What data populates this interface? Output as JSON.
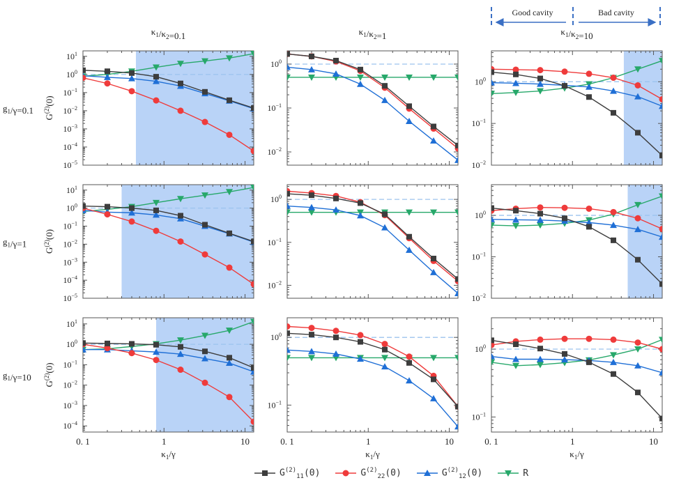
{
  "colors": {
    "G11": "#3d3d3d",
    "G22": "#ef3b3b",
    "G12": "#1f6fd6",
    "R": "#27a86a",
    "shade": "#b9d3f7",
    "ref_line": "#9cc3ee",
    "annot": "#3a6fc4"
  },
  "annotation": {
    "good": "Good cavity",
    "bad": "Bad cavity"
  },
  "legend": [
    {
      "key": "G11",
      "base": "G",
      "sup": "(2)",
      "sub": "11",
      "tail": "(0)",
      "marker": "square"
    },
    {
      "key": "G22",
      "base": "G",
      "sup": "(2)",
      "sub": "22",
      "tail": "(0)",
      "marker": "circle"
    },
    {
      "key": "G12",
      "base": "G",
      "sup": "(2)",
      "sub": "12",
      "tail": "(0)",
      "marker": "triangle-up"
    },
    {
      "key": "R",
      "base": "R",
      "sup": "",
      "sub": "",
      "tail": "",
      "marker": "triangle-down"
    }
  ],
  "col_titles": [
    "κ1/κ2=0.1",
    "κ1/κ2=1",
    "κ1/κ2=10"
  ],
  "row_labels": [
    "g1/γ=0.1",
    "g1/γ=1",
    "g1/γ=10"
  ],
  "ylabel": "G(2)(0)",
  "xlabel": "κ1/γ",
  "x_tick_labels": [
    "0. 1",
    "1",
    "10"
  ],
  "chart_data": {
    "type": "line",
    "xscale": "log",
    "yscale": "log",
    "x": [
      0.1,
      0.2,
      0.4,
      0.8,
      1.6,
      3.2,
      6.4,
      12.8
    ],
    "xlim": [
      0.1,
      12.8
    ],
    "reference_line_y": 1,
    "panels": [
      {
        "row": 0,
        "col": 0,
        "ylim": [
          1e-05,
          20
        ],
        "yticks": [
          -5,
          -4,
          -3,
          -2,
          -1,
          0,
          1
        ],
        "shade_from": 0.45,
        "series": {
          "G11": [
            1.7,
            1.5,
            1.2,
            0.75,
            0.32,
            0.11,
            0.038,
            0.014
          ],
          "G22": [
            0.65,
            0.32,
            0.12,
            0.037,
            0.01,
            0.0024,
            0.00047,
            6e-05
          ],
          "G12": [
            0.85,
            0.7,
            0.6,
            0.42,
            0.23,
            0.09,
            0.035,
            0.013
          ],
          "R": [
            0.8,
            1.0,
            1.5,
            2.5,
            4.0,
            5.5,
            8.0,
            14.0
          ]
        }
      },
      {
        "row": 0,
        "col": 1,
        "ylim": [
          0.005,
          2.0
        ],
        "yticks": [
          -2,
          -1,
          0
        ],
        "shade_from": null,
        "series": {
          "G11": [
            1.7,
            1.5,
            1.2,
            0.75,
            0.32,
            0.11,
            0.038,
            0.014
          ],
          "G22": [
            1.7,
            1.5,
            1.15,
            0.7,
            0.29,
            0.097,
            0.034,
            0.012
          ],
          "G12": [
            0.85,
            0.75,
            0.6,
            0.35,
            0.15,
            0.05,
            0.018,
            0.0065
          ],
          "R": [
            0.5,
            0.5,
            0.5,
            0.5,
            0.5,
            0.5,
            0.5,
            0.5
          ]
        }
      },
      {
        "row": 0,
        "col": 2,
        "ylim": [
          0.01,
          5.5
        ],
        "yticks": [
          -2,
          -1,
          0
        ],
        "shade_from": 4.3,
        "series": {
          "G11": [
            1.7,
            1.5,
            1.2,
            0.8,
            0.43,
            0.18,
            0.06,
            0.017
          ],
          "G22": [
            2.0,
            1.95,
            1.9,
            1.75,
            1.55,
            1.25,
            0.82,
            0.38
          ],
          "G12": [
            0.95,
            0.92,
            0.88,
            0.82,
            0.75,
            0.6,
            0.44,
            0.26
          ],
          "R": [
            0.52,
            0.55,
            0.6,
            0.7,
            0.88,
            1.25,
            2.0,
            3.2
          ]
        }
      },
      {
        "row": 1,
        "col": 0,
        "ylim": [
          1e-05,
          20
        ],
        "yticks": [
          -5,
          -4,
          -3,
          -2,
          -1,
          0,
          1
        ],
        "shade_from": 0.3,
        "series": {
          "G11": [
            1.3,
            1.2,
            1.0,
            0.75,
            0.38,
            0.12,
            0.04,
            0.014
          ],
          "G22": [
            1.0,
            0.45,
            0.18,
            0.055,
            0.014,
            0.0027,
            0.0005,
            6e-05
          ],
          "G12": [
            0.75,
            0.6,
            0.55,
            0.42,
            0.26,
            0.1,
            0.038,
            0.013
          ],
          "R": [
            0.65,
            0.85,
            1.2,
            2.0,
            3.3,
            5.2,
            8.0,
            14.0
          ]
        }
      },
      {
        "row": 1,
        "col": 1,
        "ylim": [
          0.005,
          2.2
        ],
        "yticks": [
          -2,
          -1,
          0
        ],
        "shade_from": null,
        "series": {
          "G11": [
            1.35,
            1.25,
            1.05,
            0.82,
            0.45,
            0.135,
            0.042,
            0.014
          ],
          "G22": [
            1.55,
            1.4,
            1.2,
            0.86,
            0.43,
            0.125,
            0.037,
            0.0125
          ],
          "G12": [
            0.7,
            0.65,
            0.57,
            0.42,
            0.22,
            0.066,
            0.02,
            0.0065
          ],
          "R": [
            0.5,
            0.5,
            0.5,
            0.5,
            0.5,
            0.5,
            0.5,
            0.5
          ]
        }
      },
      {
        "row": 1,
        "col": 2,
        "ylim": [
          0.01,
          5.5
        ],
        "yticks": [
          -2,
          -1,
          0
        ],
        "shade_from": 4.8,
        "series": {
          "G11": [
            1.5,
            1.3,
            1.1,
            0.85,
            0.53,
            0.25,
            0.085,
            0.022
          ],
          "G22": [
            1.3,
            1.45,
            1.55,
            1.52,
            1.45,
            1.2,
            0.85,
            0.47
          ],
          "G12": [
            0.8,
            0.78,
            0.77,
            0.73,
            0.67,
            0.58,
            0.46,
            0.3
          ],
          "R": [
            0.58,
            0.56,
            0.58,
            0.64,
            0.77,
            1.07,
            1.8,
            2.9
          ]
        }
      },
      {
        "row": 2,
        "col": 0,
        "ylim": [
          5e-05,
          20
        ],
        "yticks": [
          -4,
          -3,
          -2,
          -1,
          0,
          1
        ],
        "shade_from": 0.8,
        "series": {
          "G11": [
            1.15,
            1.1,
            1.05,
            0.95,
            0.75,
            0.45,
            0.22,
            0.07
          ],
          "G22": [
            1.0,
            0.65,
            0.37,
            0.17,
            0.057,
            0.013,
            0.0026,
            0.00016
          ],
          "G12": [
            0.55,
            0.55,
            0.48,
            0.42,
            0.33,
            0.2,
            0.12,
            0.045
          ],
          "R": [
            0.55,
            0.6,
            0.78,
            1.05,
            1.6,
            2.7,
            4.8,
            13.0
          ]
        }
      },
      {
        "row": 2,
        "col": 1,
        "ylim": [
          0.04,
          1.95
        ],
        "yticks": [
          -1,
          0
        ],
        "shade_from": null,
        "series": {
          "G11": [
            1.15,
            1.1,
            1.0,
            0.86,
            0.66,
            0.42,
            0.24,
            0.095
          ],
          "G22": [
            1.45,
            1.38,
            1.25,
            1.08,
            0.8,
            0.52,
            0.27,
            0.095
          ],
          "G12": [
            0.65,
            0.62,
            0.57,
            0.48,
            0.37,
            0.23,
            0.125,
            0.048
          ],
          "R": [
            0.5,
            0.5,
            0.5,
            0.5,
            0.5,
            0.5,
            0.5,
            0.5
          ]
        }
      },
      {
        "row": 2,
        "col": 2,
        "ylim": [
          0.06,
          2.9
        ],
        "yticks": [
          -1,
          0
        ],
        "shade_from": null,
        "series": {
          "G11": [
            1.35,
            1.18,
            1.02,
            0.85,
            0.64,
            0.43,
            0.23,
            0.095
          ],
          "G22": [
            1.15,
            1.3,
            1.38,
            1.42,
            1.42,
            1.38,
            1.25,
            1.0
          ],
          "G12": [
            0.78,
            0.71,
            0.71,
            0.7,
            0.68,
            0.64,
            0.57,
            0.45
          ],
          "R": [
            0.64,
            0.57,
            0.59,
            0.63,
            0.69,
            0.82,
            1.0,
            1.38
          ]
        }
      }
    ]
  }
}
